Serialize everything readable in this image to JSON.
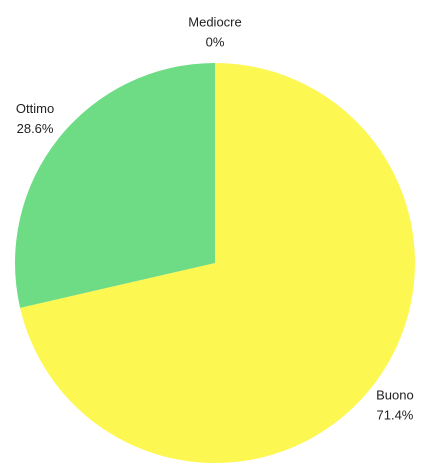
{
  "chart_data": {
    "type": "pie",
    "categories": [
      "Mediocre",
      "Buono",
      "Ottimo"
    ],
    "values": [
      0,
      71.4,
      28.6
    ],
    "value_labels": [
      "0%",
      "71.4%",
      "28.6%"
    ],
    "colors": [
      "#6cb3f0",
      "#fdf752",
      "#6edc85"
    ]
  }
}
